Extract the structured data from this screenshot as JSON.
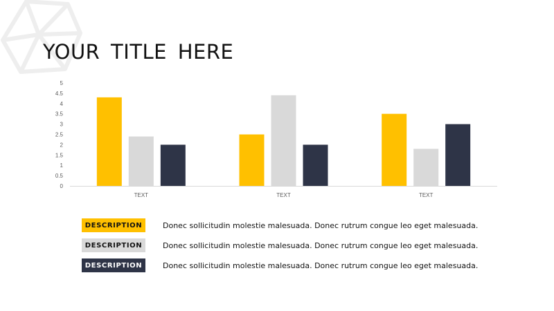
{
  "title": "YOUR  TITLE  HERE",
  "chart_data": {
    "type": "bar",
    "categories": [
      "TEXT",
      "TEXT",
      "TEXT"
    ],
    "series": [
      {
        "values": [
          4.3,
          2.5,
          3.5
        ],
        "color": "#FFC000"
      },
      {
        "values": [
          2.4,
          4.4,
          1.8
        ],
        "color": "#D9D9D9"
      },
      {
        "values": [
          2.0,
          2.0,
          3.0
        ],
        "color": "#2E3447"
      }
    ],
    "yticks": [
      "0",
      "0.5",
      "1",
      "1.5",
      "2",
      "2.5",
      "3",
      "3.5",
      "4",
      "4.5",
      "5"
    ],
    "ylim": [
      0,
      5
    ],
    "grid": false,
    "xlabel": "",
    "ylabel": ""
  },
  "legend": [
    {
      "label": "DESCRIPTION",
      "text": "Donec sollicitudin molestie malesuada. Donec rutrum congue leo eget malesuada.",
      "bg": "#FFC000",
      "fg": "#111111"
    },
    {
      "label": "DESCRIPTION",
      "text": "Donec sollicitudin molestie malesuada. Donec rutrum congue leo eget malesuada.",
      "bg": "#D9D9D9",
      "fg": "#111111"
    },
    {
      "label": "DESCRIPTION",
      "text": "Donec sollicitudin molestie malesuada. Donec rutrum congue leo eget malesuada.",
      "bg": "#2E3447",
      "fg": "#FFFFFF"
    }
  ]
}
